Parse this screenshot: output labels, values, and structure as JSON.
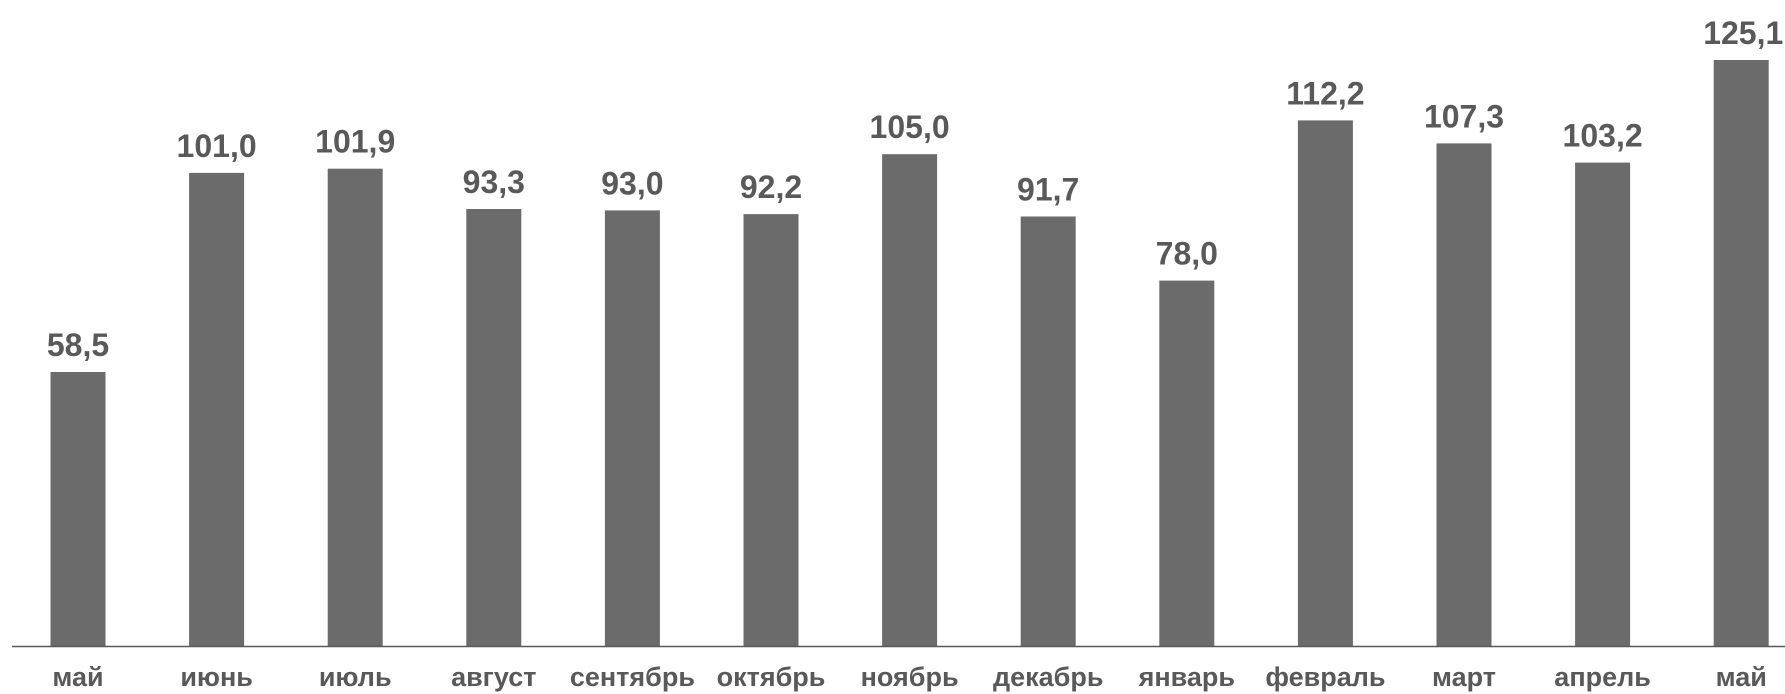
{
  "chart_data": {
    "type": "bar",
    "categories": [
      "май",
      "июнь",
      "июль",
      "август",
      "сентябрь",
      "октябрь",
      "ноябрь",
      "декабрь",
      "январь",
      "февраль",
      "март",
      "апрель",
      "май"
    ],
    "values": [
      58.5,
      101.0,
      101.9,
      93.3,
      93.0,
      92.2,
      105.0,
      91.7,
      78.0,
      112.2,
      107.3,
      103.2,
      125.1
    ],
    "value_labels": [
      "58,5",
      "101,0",
      "101,9",
      "93,3",
      "93,0",
      "92,2",
      "105,0",
      "91,7",
      "78,0",
      "112,2",
      "107,3",
      "103,2",
      "125,1"
    ],
    "title": "",
    "xlabel": "",
    "ylabel": "",
    "ylim": [
      0,
      125.1
    ],
    "grid": false,
    "legend": "none",
    "colors": {
      "bar": "#6b6b6b",
      "text": "#595959",
      "axis": "#595959"
    }
  }
}
